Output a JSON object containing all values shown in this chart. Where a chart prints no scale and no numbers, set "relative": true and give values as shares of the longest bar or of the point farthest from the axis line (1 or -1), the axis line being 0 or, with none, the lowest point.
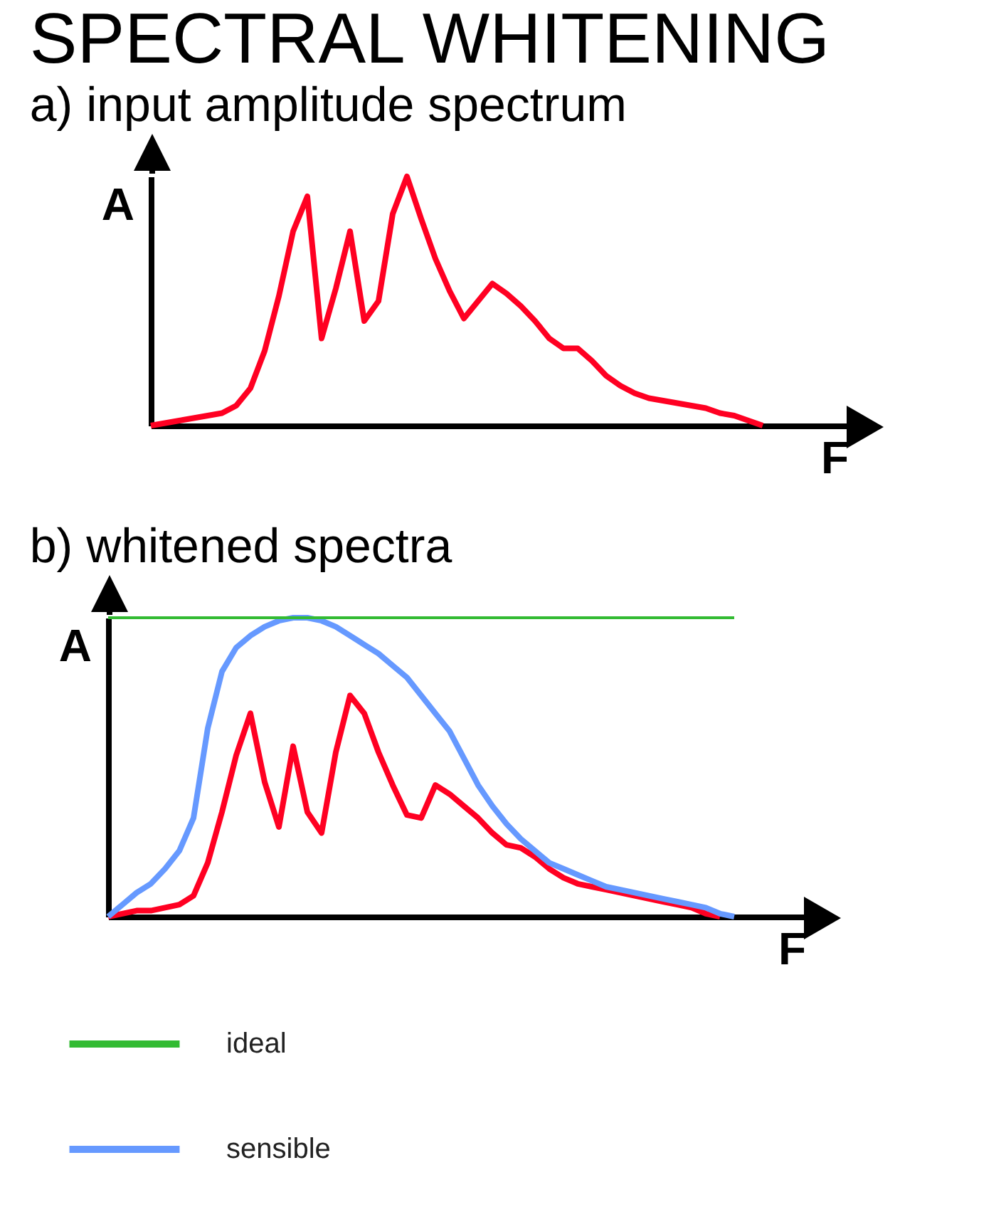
{
  "chart_data": [
    {
      "type": "line",
      "title": "SPECTRAL WHITENING",
      "subtitle": "a) input amplitude spectrum",
      "xlabel": "F",
      "ylabel": "A",
      "relative": true,
      "legend": false,
      "categories": [
        null,
        null,
        null,
        null,
        null,
        null,
        null,
        null,
        null,
        null,
        null,
        null,
        null,
        null,
        null,
        null,
        null,
        null,
        null,
        null,
        null,
        null,
        null,
        null,
        null,
        null,
        null,
        null,
        null,
        null,
        null,
        null,
        null,
        null,
        null,
        null,
        null,
        null,
        null,
        null,
        null,
        null,
        null,
        null,
        null,
        null,
        null,
        null,
        null,
        null
      ],
      "series": [
        {
          "color": "#ff0022",
          "values": [
            0,
            0.01,
            0.02,
            0.03,
            0.04,
            0.05,
            0.08,
            0.15,
            0.3,
            0.52,
            0.78,
            0.92,
            0.35,
            0.55,
            0.78,
            0.42,
            0.5,
            0.85,
            1.0,
            0.83,
            0.67,
            0.54,
            0.43,
            0.5,
            0.57,
            0.53,
            0.48,
            0.42,
            0.35,
            0.31,
            0.31,
            0.26,
            0.2,
            0.16,
            0.13,
            0.11,
            0.1,
            0.09,
            0.08,
            0.07,
            0.05,
            0.04,
            0.02,
            0,
            null,
            null,
            null,
            null,
            null,
            null
          ]
        }
      ]
    },
    {
      "type": "line",
      "title": "b) whitened spectra",
      "xlabel": "F",
      "ylabel": "A",
      "relative": true,
      "legend": "bottom left",
      "categories": [
        null,
        null,
        null,
        null,
        null,
        null,
        null,
        null,
        null,
        null,
        null,
        null,
        null,
        null,
        null,
        null,
        null,
        null,
        null,
        null,
        null,
        null,
        null,
        null,
        null,
        null,
        null,
        null,
        null,
        null,
        null,
        null,
        null,
        null,
        null,
        null,
        null,
        null,
        null,
        null,
        null,
        null,
        null,
        null,
        null,
        null,
        null,
        null,
        null,
        null
      ],
      "series": [
        {
          "name": "ideal",
          "color": "#33bb33",
          "values": [
            1,
            1,
            1,
            1,
            1,
            1,
            1,
            1,
            1,
            1,
            1,
            1,
            1,
            1,
            1,
            1,
            1,
            1,
            1,
            1,
            1,
            1,
            1,
            1,
            1,
            1,
            1,
            1,
            1,
            1,
            1,
            1,
            1,
            1,
            1,
            1,
            1,
            1,
            1,
            1,
            1,
            1,
            1,
            1,
            1,
            null,
            null,
            null,
            null,
            null
          ]
        },
        {
          "name": "sensible",
          "color": "#6699ff",
          "values": [
            0,
            0.04,
            0.08,
            0.11,
            0.16,
            0.22,
            0.33,
            0.63,
            0.82,
            0.9,
            0.94,
            0.97,
            0.99,
            1.0,
            1.0,
            0.99,
            0.97,
            0.94,
            0.91,
            0.88,
            0.84,
            0.8,
            0.74,
            0.68,
            0.62,
            0.53,
            0.44,
            0.37,
            0.31,
            0.26,
            0.22,
            0.18,
            0.16,
            0.14,
            0.12,
            0.1,
            0.09,
            0.08,
            0.07,
            0.06,
            0.05,
            0.04,
            0.03,
            0.01,
            0,
            null,
            null,
            null,
            null,
            null
          ]
        },
        {
          "color": "#ff0022",
          "values": [
            0,
            0.01,
            0.02,
            0.02,
            0.03,
            0.04,
            0.07,
            0.18,
            0.35,
            0.54,
            0.68,
            0.45,
            0.3,
            0.57,
            0.35,
            0.28,
            0.55,
            0.74,
            0.68,
            0.55,
            0.44,
            0.34,
            0.33,
            0.44,
            0.41,
            0.37,
            0.33,
            0.28,
            0.24,
            0.23,
            0.2,
            0.16,
            0.13,
            0.11,
            0.1,
            0.09,
            0.08,
            0.07,
            0.06,
            0.05,
            0.04,
            0.03,
            0.01,
            0,
            null,
            null,
            null,
            null,
            null,
            null
          ]
        }
      ]
    }
  ]
}
